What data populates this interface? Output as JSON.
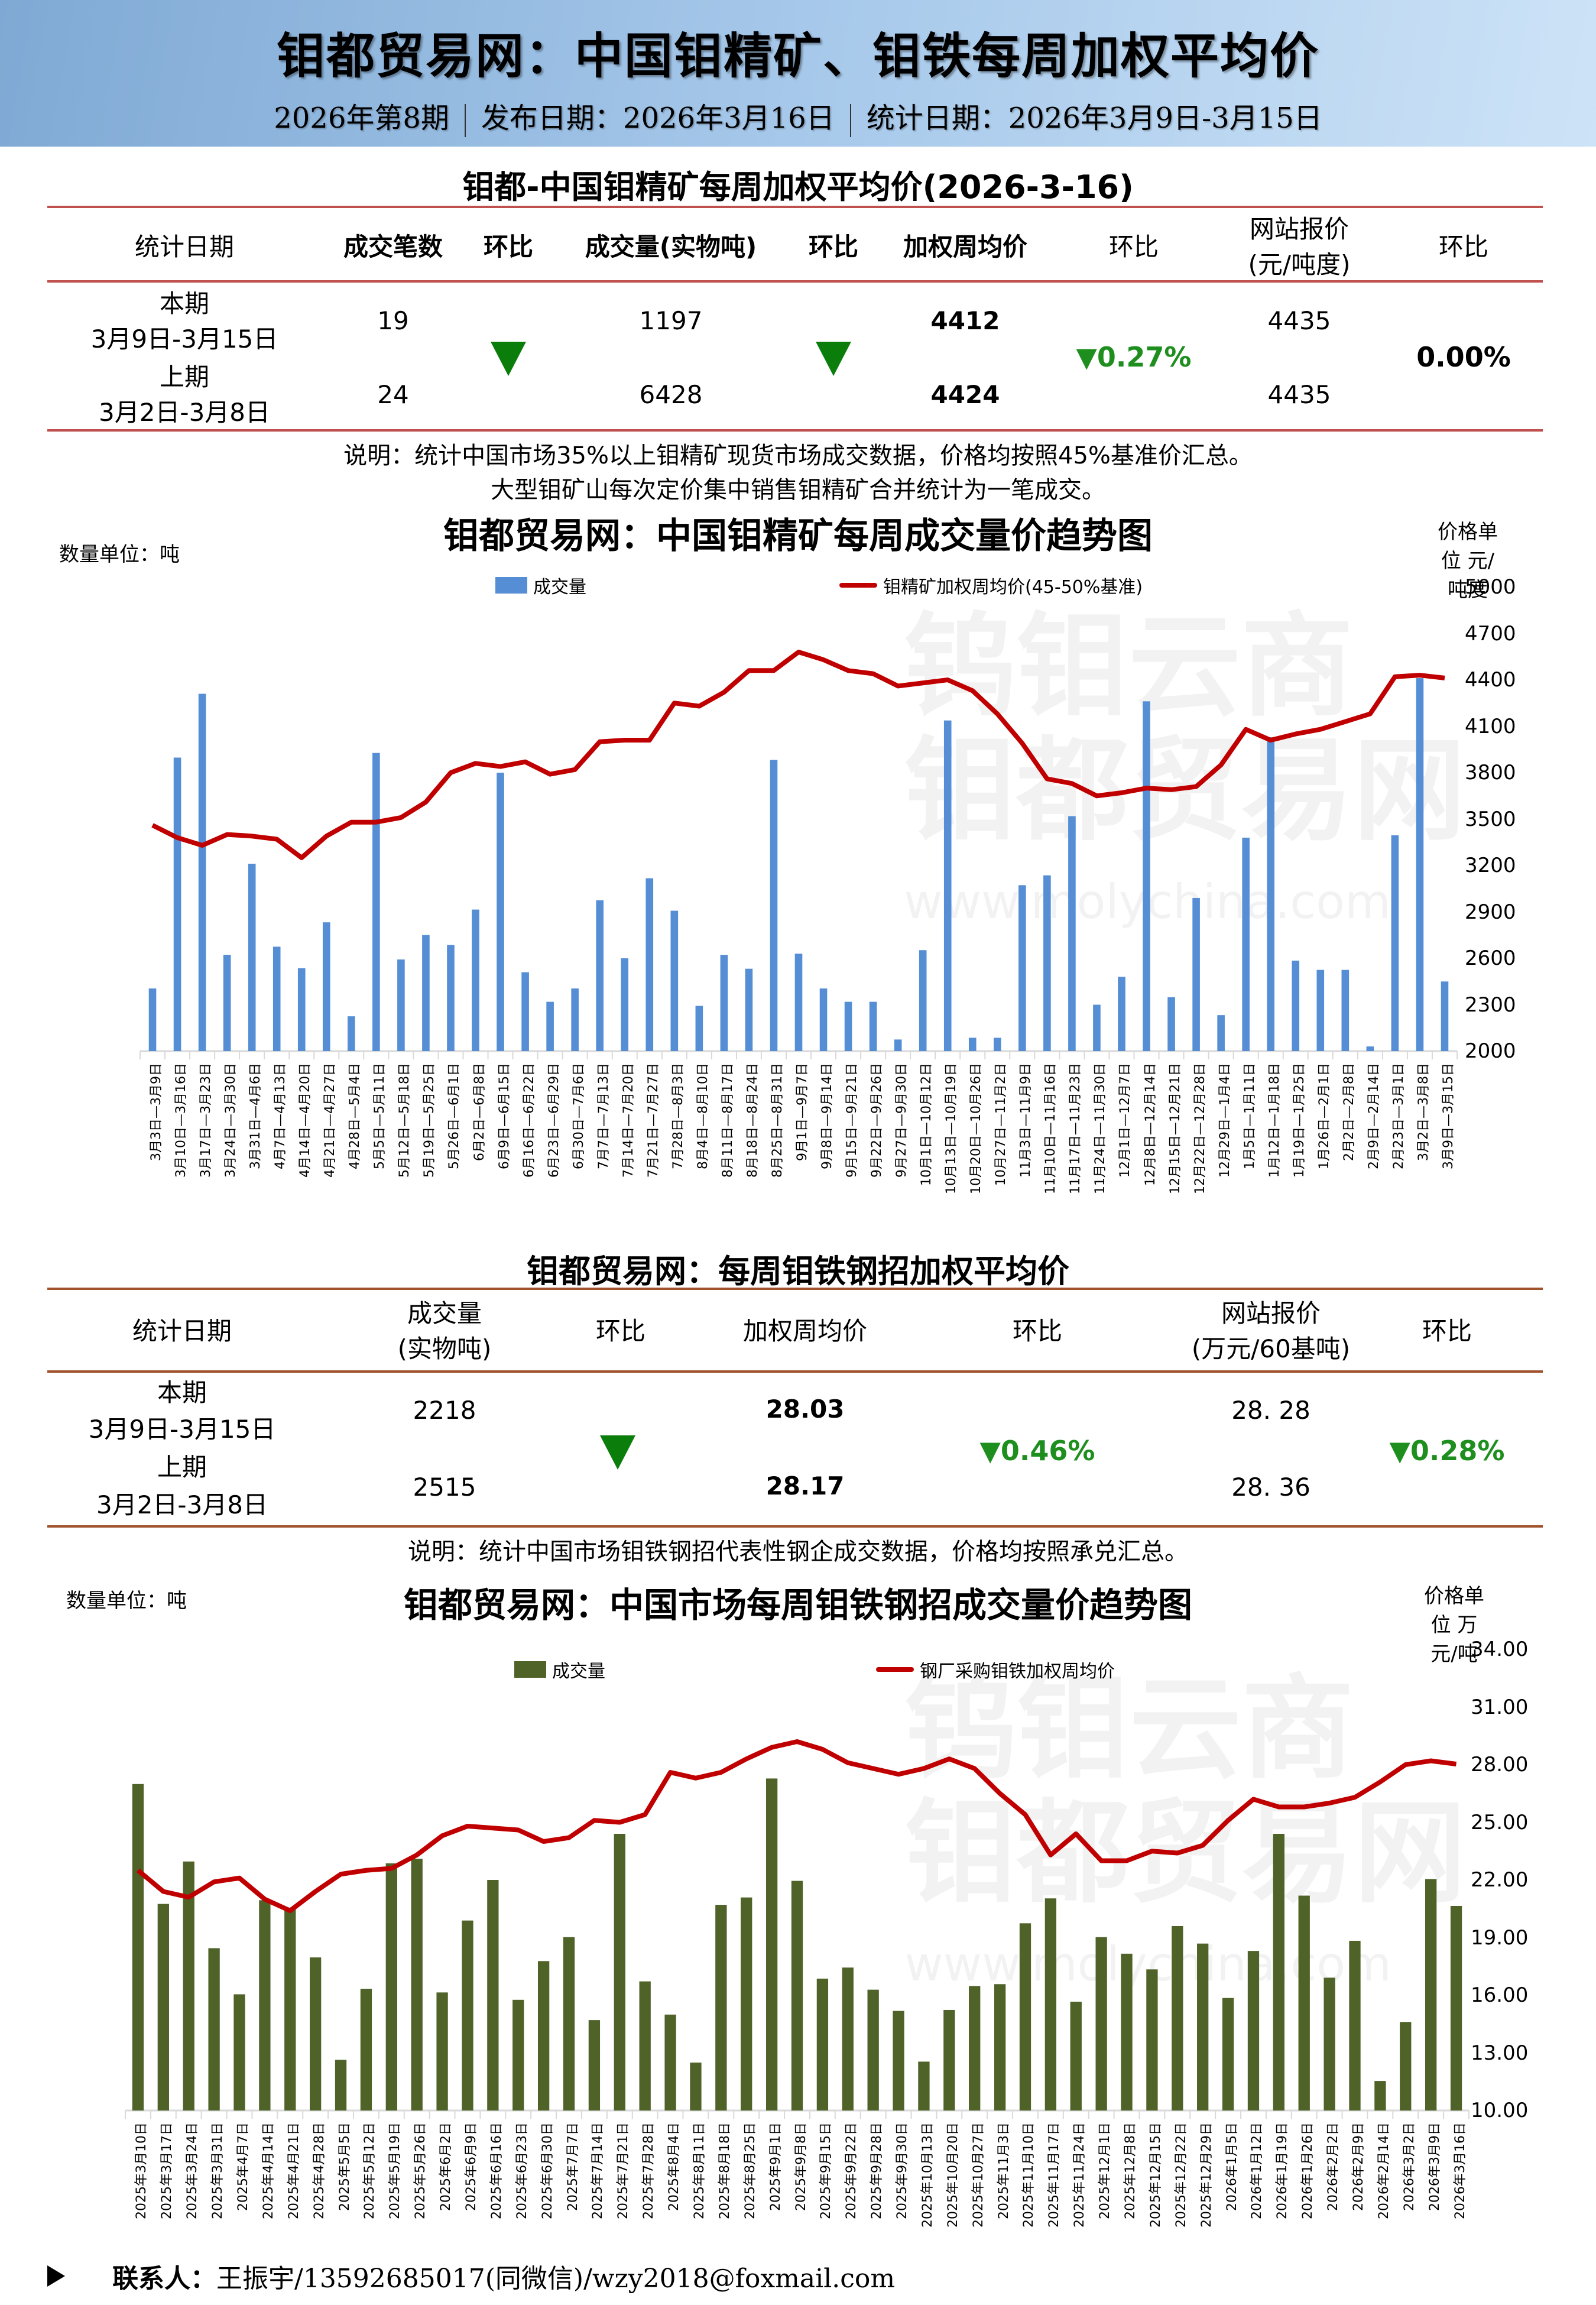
{
  "header": {
    "title": "钼都贸易网：中国钼精矿、钼铁每周加权平均价",
    "issue": "2026年第8期",
    "publish_date": "发布日期：2026年3月16日",
    "stat_date": "统计日期：2026年3月9日-3月15日"
  },
  "concentrate_table": {
    "title": "钼都-中国钼精矿每周加权平均价(2026-3-16)",
    "headers": [
      "统计日期",
      "成交笔数",
      "环比",
      "成交量(实物吨)",
      "环比",
      "加权周均价",
      "环比",
      "网站报价",
      "(元/吨度)",
      "环比"
    ],
    "current": {
      "label": "本期",
      "range": "3月9日-3月15日",
      "deals": "19",
      "volume": "1197",
      "avg_price": "4412",
      "site_price": "4435"
    },
    "previous": {
      "label": "上期",
      "range": "3月2日-3月8日",
      "deals": "24",
      "volume": "6428",
      "avg_price": "4424",
      "site_price": "4435"
    },
    "deals_change": "down",
    "volume_change": "down",
    "avg_price_change": "▼0.27%",
    "site_price_change": "0.00%",
    "note_line1": "说明：统计中国市场35%以上钼精矿现货市场成交数据，价格均按照45%基准价汇总。",
    "note_line2": "大型钼矿山每次定价集中销售钼精矿合并统计为一笔成交。"
  },
  "ferro_table": {
    "title": "钼都贸易网：每周钼铁钢招加权平均价",
    "headers": [
      "统计日期",
      "成交量",
      "(实物吨)",
      "环比",
      "加权周均价",
      "环比",
      "网站报价",
      "(万元/60基吨)",
      "环比"
    ],
    "current": {
      "label": "本期",
      "range": "3月9日-3月15日",
      "volume": "2218",
      "avg_price": "28.03",
      "site_price": "28. 28"
    },
    "previous": {
      "label": "上期",
      "range": "3月2日-3月8日",
      "volume": "2515",
      "avg_price": "28.17",
      "site_price": "28. 36"
    },
    "volume_change": "down",
    "avg_price_change": "▼0.46%",
    "site_price_change": "▼0.28%",
    "note": "说明：统计中国市场钼铁钢招代表性钢企成交数据，价格均按照承兑汇总。"
  },
  "footer": {
    "label": "联系人：",
    "contact": "王振宇/13592685017(同微信)/wzy2018@foxmail.com"
  },
  "watermark": {
    "line1": "钨钼云商",
    "line2": "钼都贸易网",
    "url": "www.molychina.com"
  },
  "colors": {
    "bar1": "#558ed5",
    "bar2": "#4f6228",
    "line": "#c00000",
    "table_rule1": "#c0504d",
    "table_rule2": "#a0522d",
    "down": "#0a7d0a"
  },
  "chart_data": [
    {
      "type": "bar+line",
      "title": "钼都贸易网：中国钼精矿每周成交量价趋势图",
      "ylabel_left": "数量单位：吨",
      "ylabel_right": "价格单位 元/吨度",
      "ylim_left": [
        0,
        8000
      ],
      "yticks_left": [
        0,
        800,
        1600,
        2400,
        3200,
        4000,
        4800,
        5600,
        6400,
        7200,
        8000
      ],
      "ylim_right": [
        2000,
        5000
      ],
      "yticks_right": [
        2000,
        2300,
        2600,
        2900,
        3200,
        3500,
        3800,
        4100,
        4400,
        4700,
        5000
      ],
      "legend": [
        "成交量",
        "钼精矿加权周均价(45-50%基准)"
      ],
      "categories": [
        "3月3日—3月9日",
        "3月10日—3月16日",
        "3月17日—3月23日",
        "3月24日—3月30日",
        "3月31日—4月6日",
        "4月7日—4月13日",
        "4月14日—4月20日",
        "4月21日—4月27日",
        "4月28日—5月4日",
        "5月5日—5月11日",
        "5月12日—5月18日",
        "5月19日—5月25日",
        "5月26日—6月1日",
        "6月2日—6月8日",
        "6月9日—6月15日",
        "6月16日—6月22日",
        "6月23日—6月29日",
        "6月30日—7月6日",
        "7月7日—7月13日",
        "7月14日—7月20日",
        "7月21日—7月27日",
        "7月28日—8月3日",
        "8月4日—8月10日",
        "8月11日—8月17日",
        "8月18日—8月24日",
        "8月25日—8月31日",
        "9月1日—9月7日",
        "9月8日—9月14日",
        "9月15日—9月21日",
        "9月22日—9月26日",
        "9月27日—9月30日",
        "10月1日—10月12日",
        "10月13日—10月19日",
        "10月20日—10月26日",
        "10月27日—11月2日",
        "11月3日—11月9日",
        "11月10日—11月16日",
        "11月17日—11月23日",
        "11月24日—11月30日",
        "12月1日—12月7日",
        "12月8日—12月14日",
        "12月15日—12月21日",
        "12月22日—12月28日",
        "12月29日—1月4日",
        "1月5日—1月11日",
        "1月12日—1月18日",
        "1月19日—1月25日",
        "1月26日—2月1日",
        "2月2日—2月8日",
        "2月9日—2月14日",
        "2月23日—3月1日",
        "3月2日—3月8日",
        "3月9日—3月15日"
      ],
      "series": [
        {
          "name": "成交量",
          "type": "bar",
          "axis": "left",
          "values": [
            1080,
            5060,
            6160,
            1660,
            3230,
            1800,
            1430,
            2220,
            600,
            5140,
            1580,
            2000,
            1830,
            2440,
            4800,
            1360,
            850,
            1080,
            2600,
            1600,
            2980,
            2420,
            780,
            1660,
            1420,
            5020,
            1680,
            1080,
            850,
            850,
            200,
            1740,
            5700,
            230,
            230,
            2860,
            3030,
            4050,
            800,
            1280,
            6030,
            930,
            2640,
            620,
            3680,
            5410,
            1560,
            1400,
            1400,
            80,
            3720,
            6430,
            1200
          ]
        },
        {
          "name": "钼精矿加权周均价(45-50%基准)",
          "type": "line",
          "axis": "right",
          "values": [
            3460,
            3380,
            3330,
            3400,
            3390,
            3370,
            3250,
            3390,
            3480,
            3480,
            3510,
            3610,
            3800,
            3860,
            3840,
            3870,
            3790,
            3820,
            4000,
            4010,
            4010,
            4250,
            4230,
            4320,
            4460,
            4460,
            4580,
            4530,
            4460,
            4440,
            4360,
            4380,
            4400,
            4330,
            4180,
            3990,
            3760,
            3730,
            3650,
            3670,
            3700,
            3690,
            3710,
            3850,
            4080,
            4010,
            4050,
            4080,
            4130,
            4180,
            4420,
            4430,
            4412
          ]
        }
      ]
    },
    {
      "type": "bar+line",
      "title": "钼都贸易网：中国市场每周钼铁钢招成交量价趋势图",
      "ylabel_left": "数量单位：吨",
      "ylabel_right": "价格单位 万元/吨",
      "ylim_left": [
        0,
        5000
      ],
      "yticks_left": [
        0,
        500,
        1000,
        1500,
        2000,
        2500,
        3000,
        3500,
        4000,
        4500,
        5000
      ],
      "ylim_right": [
        10,
        34
      ],
      "yticks_right": [
        "10.00",
        "13.00",
        "16.00",
        "19.00",
        "22.00",
        "25.00",
        "28.00",
        "31.00",
        "34.00"
      ],
      "legend": [
        "成交量",
        "钢厂采购钼铁加权周均价"
      ],
      "categories": [
        "2025年3月10日",
        "2025年3月17日",
        "2025年3月24日",
        "2025年3月31日",
        "2025年4月7日",
        "2025年4月14日",
        "2025年4月21日",
        "2025年4月28日",
        "2025年5月5日",
        "2025年5月12日",
        "2025年5月19日",
        "2025年5月26日",
        "2025年6月2日",
        "2025年6月9日",
        "2025年6月16日",
        "2025年6月23日",
        "2025年6月30日",
        "2025年7月7日",
        "2025年7月14日",
        "2025年7月21日",
        "2025年7月28日",
        "2025年8月4日",
        "2025年8月11日",
        "2025年8月18日",
        "2025年8月25日",
        "2025年9月1日",
        "2025年9月8日",
        "2025年9月15日",
        "2025年9月22日",
        "2025年9月28日",
        "2025年9月30日",
        "2025年10月13日",
        "2025年10月20日",
        "2025年10月27日",
        "2025年11月3日",
        "2025年11月10日",
        "2025年11月17日",
        "2025年11月24日",
        "2025年12月1日",
        "2025年12月8日",
        "2025年12月15日",
        "2025年12月22日",
        "2025年12月29日",
        "2026年1月5日",
        "2026年1月12日",
        "2026年1月19日",
        "2026年1月26日",
        "2026年2月2日",
        "2026年2月9日",
        "2026年2月14日",
        "2026年3月2日",
        "2026年3月9日",
        "2026年3月16日"
      ],
      "series": [
        {
          "name": "成交量",
          "type": "bar",
          "axis": "left",
          "values": [
            3540,
            2240,
            2700,
            1760,
            1260,
            2280,
            2200,
            1660,
            550,
            1320,
            2680,
            2730,
            1280,
            2060,
            2500,
            1200,
            1620,
            1880,
            980,
            3000,
            1400,
            1040,
            520,
            2230,
            2310,
            3600,
            2490,
            1430,
            1550,
            1310,
            1080,
            530,
            1090,
            1350,
            1370,
            2030,
            2300,
            1180,
            1880,
            1700,
            1530,
            2000,
            1810,
            1220,
            1730,
            3000,
            2330,
            1440,
            1840,
            320,
            960,
            2510,
            2218
          ]
        },
        {
          "name": "钢厂采购钼铁加权周均价",
          "type": "line",
          "axis": "right",
          "values": [
            22.5,
            21.4,
            21.1,
            21.9,
            22.1,
            21.0,
            20.4,
            21.4,
            22.3,
            22.5,
            22.6,
            23.3,
            24.3,
            24.8,
            24.7,
            24.6,
            24.0,
            24.2,
            25.1,
            25.0,
            25.4,
            27.6,
            27.3,
            27.6,
            28.3,
            28.9,
            29.2,
            28.8,
            28.1,
            27.8,
            27.5,
            27.8,
            28.3,
            27.8,
            26.5,
            25.4,
            23.3,
            24.4,
            23.0,
            23.0,
            23.5,
            23.4,
            23.8,
            25.1,
            26.2,
            25.8,
            25.8,
            26.0,
            26.3,
            27.1,
            28.0,
            28.2,
            28.03
          ]
        }
      ]
    }
  ]
}
